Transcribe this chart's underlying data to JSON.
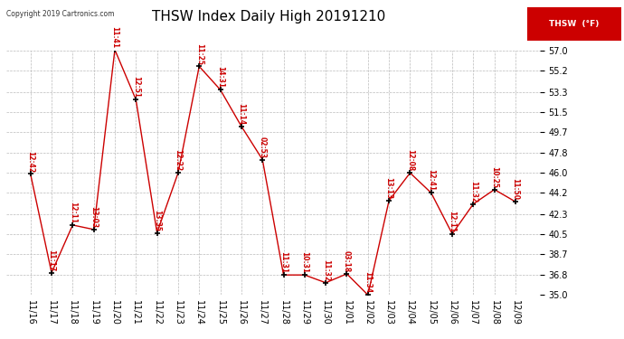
{
  "title": "THSW Index Daily High 20191210",
  "copyright": "Copyright 2019 Cartronics.com",
  "legend_label": "THSW  (°F)",
  "dates": [
    "11/16",
    "11/17",
    "11/18",
    "11/19",
    "11/20",
    "11/21",
    "11/22",
    "11/23",
    "11/24",
    "11/25",
    "11/26",
    "11/27",
    "11/28",
    "11/29",
    "11/30",
    "12/01",
    "12/02",
    "12/03",
    "12/04",
    "12/05",
    "12/06",
    "12/07",
    "12/08",
    "12/09"
  ],
  "values": [
    45.9,
    37.0,
    41.3,
    40.9,
    57.1,
    52.6,
    40.6,
    46.0,
    55.6,
    53.5,
    50.2,
    47.2,
    36.8,
    36.8,
    36.1,
    36.9,
    35.0,
    43.5,
    46.0,
    44.2,
    40.5,
    43.2,
    44.5,
    43.4
  ],
  "times": [
    "12:42",
    "11:17",
    "12:11",
    "13:03",
    "11:41",
    "12:51",
    "13:35",
    "12:22",
    "11:25",
    "14:31",
    "11:14",
    "02:53",
    "11:31",
    "10:31",
    "11:32",
    "03:18",
    "11:34",
    "13:13",
    "12:08",
    "12:41",
    "12:11",
    "11:32",
    "10:25",
    "11:50"
  ],
  "ylim": [
    35.0,
    57.0
  ],
  "yticks": [
    35.0,
    36.8,
    38.7,
    40.5,
    42.3,
    44.2,
    46.0,
    47.8,
    49.7,
    51.5,
    53.3,
    55.2,
    57.0
  ],
  "line_color": "#cc0000",
  "marker_color": "#000000",
  "text_color": "#cc0000",
  "grid_color": "#bbbbbb",
  "bg_color": "#ffffff",
  "title_fontsize": 11,
  "tick_fontsize": 7,
  "legend_bg": "#cc0000",
  "legend_text": "#ffffff"
}
